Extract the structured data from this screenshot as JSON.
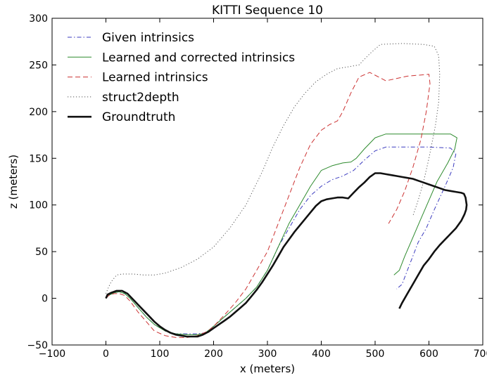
{
  "chart_data": {
    "type": "line",
    "title": "KITTI Sequence 10",
    "xlabel": "x (meters)",
    "ylabel": "z (meters)",
    "xlim": [
      -100,
      700
    ],
    "ylim": [
      -50,
      300
    ],
    "xticks": [
      -100,
      0,
      100,
      200,
      300,
      400,
      500,
      600,
      700
    ],
    "yticks": [
      -50,
      0,
      50,
      100,
      150,
      200,
      250,
      300
    ],
    "xtick_labels": [
      "−100",
      "0",
      "100",
      "200",
      "300",
      "400",
      "500",
      "600",
      "700"
    ],
    "ytick_labels": [
      "−50",
      "0",
      "50",
      "100",
      "150",
      "200",
      "250",
      "300"
    ],
    "grid": false,
    "legend_position": "top-left",
    "series": [
      {
        "name": "Given intrinsics",
        "color": "#3b3bbf",
        "style": "dashdot",
        "x": [
          0,
          5,
          15,
          25,
          35,
          45,
          60,
          75,
          90,
          110,
          130,
          150,
          170,
          185,
          200,
          220,
          240,
          260,
          280,
          300,
          320,
          340,
          360,
          380,
          400,
          420,
          440,
          460,
          480,
          500,
          520,
          560,
          600,
          640,
          650,
          645,
          630,
          610,
          595,
          580,
          570,
          560,
          550,
          540
        ],
        "y": [
          0,
          3,
          6,
          7,
          5,
          0,
          -10,
          -20,
          -28,
          -35,
          -38,
          -38,
          -38,
          -37,
          -30,
          -20,
          -10,
          0,
          12,
          30,
          55,
          75,
          95,
          110,
          120,
          127,
          131,
          137,
          148,
          158,
          162,
          162,
          162,
          161,
          155,
          140,
          120,
          95,
          75,
          60,
          45,
          30,
          15,
          10
        ]
      },
      {
        "name": "Learned and corrected intrinsics",
        "color": "#2e8b2e",
        "style": "solid",
        "x": [
          0,
          5,
          15,
          25,
          35,
          45,
          60,
          75,
          90,
          110,
          130,
          150,
          170,
          185,
          200,
          220,
          240,
          260,
          280,
          300,
          320,
          340,
          360,
          380,
          400,
          420,
          440,
          455,
          465,
          480,
          500,
          520,
          560,
          600,
          640,
          652,
          648,
          635,
          615,
          600,
          585,
          570,
          555,
          545,
          535
        ],
        "y": [
          0,
          3,
          6,
          7,
          5,
          0,
          -10,
          -20,
          -28,
          -35,
          -38,
          -39,
          -39,
          -37,
          -30,
          -20,
          -10,
          0,
          12,
          30,
          55,
          80,
          100,
          120,
          137,
          142,
          145,
          146,
          150,
          160,
          172,
          176,
          176,
          176,
          176,
          172,
          160,
          145,
          125,
          105,
          85,
          65,
          45,
          30,
          25
        ]
      },
      {
        "name": "Learned intrinsics",
        "color": "#cc3333",
        "style": "dashed",
        "x": [
          0,
          5,
          15,
          25,
          35,
          45,
          60,
          75,
          90,
          110,
          130,
          150,
          170,
          190,
          200,
          220,
          240,
          260,
          280,
          300,
          320,
          340,
          360,
          380,
          400,
          415,
          430,
          440,
          455,
          470,
          490,
          520,
          560,
          600,
          602,
          595,
          585,
          570,
          555,
          540,
          525
        ],
        "y": [
          0,
          3,
          5,
          5,
          3,
          -3,
          -15,
          -25,
          -35,
          -40,
          -42,
          -42,
          -40,
          -35,
          -30,
          -18,
          -5,
          10,
          30,
          50,
          80,
          110,
          140,
          165,
          180,
          186,
          190,
          200,
          220,
          237,
          242,
          233,
          238,
          240,
          230,
          200,
          170,
          140,
          115,
          95,
          80
        ]
      },
      {
        "name": "struct2depth",
        "color": "#555555",
        "style": "dotted",
        "x": [
          0,
          5,
          10,
          20,
          30,
          50,
          70,
          90,
          110,
          140,
          170,
          200,
          230,
          260,
          290,
          310,
          330,
          350,
          370,
          390,
          410,
          430,
          450,
          470,
          490,
          510,
          550,
          590,
          610,
          618,
          620,
          618,
          612,
          600,
          590,
          580,
          570
        ],
        "y": [
          5,
          12,
          18,
          25,
          26,
          26,
          25,
          25,
          27,
          33,
          42,
          55,
          75,
          100,
          135,
          162,
          185,
          205,
          220,
          232,
          240,
          246,
          248,
          250,
          262,
          272,
          273,
          272,
          270,
          260,
          240,
          210,
          185,
          150,
          125,
          105,
          88
        ]
      },
      {
        "name": "Groundtruth",
        "color": "#111111",
        "style": "solid-thick",
        "x": [
          0,
          3,
          10,
          20,
          30,
          40,
          50,
          60,
          70,
          80,
          90,
          100,
          110,
          120,
          130,
          140,
          150,
          160,
          170,
          180,
          190,
          200,
          210,
          220,
          230,
          240,
          250,
          260,
          270,
          280,
          290,
          300,
          310,
          320,
          330,
          340,
          350,
          360,
          370,
          380,
          390,
          400,
          410,
          420,
          430,
          440,
          450,
          460,
          470,
          480,
          490,
          500,
          510,
          520,
          530,
          540,
          550,
          560,
          570,
          580,
          590,
          600,
          610,
          620,
          630,
          640,
          650,
          660,
          665,
          668,
          670,
          669,
          666,
          660,
          650,
          640,
          630,
          620,
          610,
          600,
          590,
          580,
          570,
          560,
          550,
          545
        ],
        "y": [
          0,
          4,
          6,
          8,
          8,
          5,
          -1,
          -7,
          -13,
          -19,
          -25,
          -30,
          -34,
          -37,
          -39,
          -40,
          -41,
          -41,
          -41,
          -39,
          -36,
          -32,
          -28,
          -24,
          -20,
          -15,
          -10,
          -5,
          2,
          9,
          17,
          26,
          35,
          45,
          55,
          63,
          71,
          78,
          85,
          92,
          99,
          104,
          106,
          107,
          108,
          108,
          107,
          113,
          119,
          124,
          130,
          134,
          134,
          133,
          132,
          131,
          130,
          129,
          128,
          126,
          124,
          122,
          120,
          118,
          116,
          115,
          114,
          113,
          112,
          108,
          100,
          95,
          90,
          83,
          75,
          69,
          63,
          57,
          50,
          42,
          35,
          25,
          15,
          5,
          -5,
          -11
        ]
      }
    ]
  }
}
